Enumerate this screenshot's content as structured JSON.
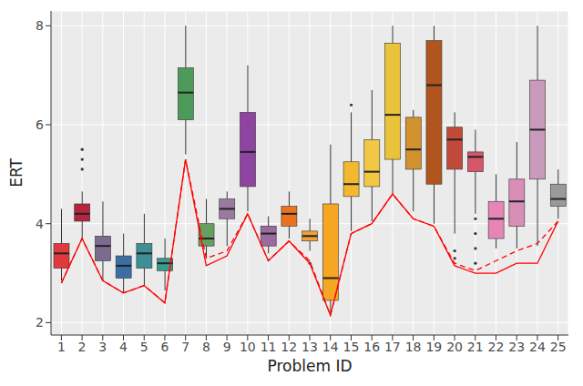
{
  "chart_data": {
    "type": "box",
    "x_label": "Problem ID",
    "y_label": "ERT",
    "categories": [
      "1",
      "2",
      "3",
      "4",
      "5",
      "6",
      "7",
      "8",
      "9",
      "10",
      "11",
      "12",
      "13",
      "14",
      "15",
      "16",
      "17",
      "18",
      "19",
      "20",
      "21",
      "22",
      "23",
      "24",
      "25"
    ],
    "colors": [
      "#E0393E",
      "#B5253E",
      "#7B6C8E",
      "#3A6EA5",
      "#3E8E95",
      "#3A9A8A",
      "#4E9A5A",
      "#66A061",
      "#9A7AA0",
      "#8E44A0",
      "#9B6A9F",
      "#E9731F",
      "#F29F34",
      "#F5A623",
      "#F3B830",
      "#F2C744",
      "#E9C33A",
      "#D2922E",
      "#B0551E",
      "#C24A3A",
      "#D6566A",
      "#E786B5",
      "#D88EB6",
      "#C99ABB",
      "#9A9A9A"
    ],
    "boxes": [
      {
        "low": 2.85,
        "q1": 3.1,
        "median": 3.4,
        "q3": 3.6,
        "high": 4.3,
        "outliers": []
      },
      {
        "low": 3.7,
        "q1": 4.05,
        "median": 4.2,
        "q3": 4.4,
        "high": 4.65,
        "outliers": [
          5.1,
          5.3,
          5.5
        ]
      },
      {
        "low": 2.85,
        "q1": 3.25,
        "median": 3.55,
        "q3": 3.75,
        "high": 4.45,
        "outliers": []
      },
      {
        "low": 2.6,
        "q1": 2.9,
        "median": 3.15,
        "q3": 3.35,
        "high": 3.8,
        "outliers": []
      },
      {
        "low": 2.75,
        "q1": 3.1,
        "median": 3.4,
        "q3": 3.6,
        "high": 4.2,
        "outliers": []
      },
      {
        "low": 2.65,
        "q1": 3.05,
        "median": 3.2,
        "q3": 3.3,
        "high": 3.7,
        "outliers": []
      },
      {
        "low": 5.4,
        "q1": 6.1,
        "median": 6.65,
        "q3": 7.15,
        "high": 8.0,
        "outliers": []
      },
      {
        "low": 3.3,
        "q1": 3.55,
        "median": 3.7,
        "q3": 4.0,
        "high": 4.5,
        "outliers": []
      },
      {
        "low": 3.55,
        "q1": 4.1,
        "median": 4.3,
        "q3": 4.5,
        "high": 4.65,
        "outliers": []
      },
      {
        "low": 4.25,
        "q1": 4.75,
        "median": 5.45,
        "q3": 6.25,
        "high": 7.2,
        "outliers": []
      },
      {
        "low": 3.4,
        "q1": 3.55,
        "median": 3.8,
        "q3": 3.95,
        "high": 4.15,
        "outliers": []
      },
      {
        "low": 3.7,
        "q1": 3.95,
        "median": 4.2,
        "q3": 4.35,
        "high": 4.65,
        "outliers": []
      },
      {
        "low": 3.45,
        "q1": 3.65,
        "median": 3.75,
        "q3": 3.85,
        "high": 4.1,
        "outliers": [
          3.2
        ]
      },
      {
        "low": 2.2,
        "q1": 2.45,
        "median": 2.9,
        "q3": 4.4,
        "high": 5.6,
        "outliers": []
      },
      {
        "low": 3.85,
        "q1": 4.55,
        "median": 4.8,
        "q3": 5.25,
        "high": 6.25,
        "outliers": [
          6.4
        ]
      },
      {
        "low": 4.05,
        "q1": 4.75,
        "median": 5.05,
        "q3": 5.7,
        "high": 6.7,
        "outliers": []
      },
      {
        "low": 4.6,
        "q1": 5.3,
        "median": 6.2,
        "q3": 7.65,
        "high": 8.0,
        "outliers": []
      },
      {
        "low": 4.25,
        "q1": 5.1,
        "median": 5.5,
        "q3": 6.15,
        "high": 6.3,
        "outliers": []
      },
      {
        "low": 4.0,
        "q1": 4.8,
        "median": 6.8,
        "q3": 7.7,
        "high": 8.0,
        "outliers": []
      },
      {
        "low": 3.8,
        "q1": 5.1,
        "median": 5.7,
        "q3": 5.95,
        "high": 6.25,
        "outliers": [
          3.3,
          3.45
        ]
      },
      {
        "low": 4.2,
        "q1": 5.05,
        "median": 5.35,
        "q3": 5.45,
        "high": 5.9,
        "outliers": [
          3.2,
          3.5,
          3.8,
          4.1
        ]
      },
      {
        "low": 3.5,
        "q1": 3.7,
        "median": 4.1,
        "q3": 4.45,
        "high": 5.0,
        "outliers": []
      },
      {
        "low": 3.5,
        "q1": 3.95,
        "median": 4.45,
        "q3": 4.9,
        "high": 5.65,
        "outliers": []
      },
      {
        "low": 3.55,
        "q1": 4.9,
        "median": 5.9,
        "q3": 6.9,
        "high": 8.0,
        "outliers": []
      },
      {
        "low": 4.1,
        "q1": 4.35,
        "median": 4.5,
        "q3": 4.8,
        "high": 5.1,
        "outliers": []
      }
    ],
    "lines": [
      {
        "type": "line",
        "color": "#FF0000",
        "line_style": "solid",
        "values": [
          2.8,
          3.7,
          2.85,
          2.6,
          2.75,
          2.4,
          5.3,
          3.15,
          3.35,
          4.2,
          3.25,
          3.65,
          3.2,
          2.15,
          3.8,
          4.0,
          4.6,
          4.1,
          3.95,
          3.15,
          3.0,
          3.0,
          3.2,
          3.2,
          4.05
        ]
      },
      {
        "type": "line",
        "color": "#FF0000",
        "line_style": "dashed",
        "values": [
          2.8,
          3.7,
          2.85,
          2.6,
          2.75,
          2.4,
          5.3,
          3.3,
          3.45,
          4.2,
          3.25,
          3.65,
          3.25,
          2.15,
          3.8,
          4.0,
          4.6,
          4.1,
          3.95,
          3.2,
          3.05,
          3.25,
          3.45,
          3.6,
          4.05
        ]
      }
    ],
    "ylim": [
      1.75,
      8.3
    ],
    "yticks": [
      2,
      4,
      6,
      8
    ],
    "grid": true
  }
}
